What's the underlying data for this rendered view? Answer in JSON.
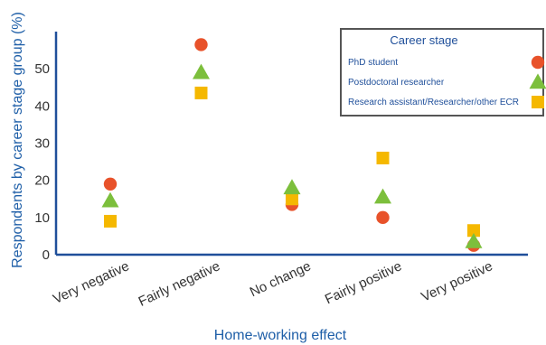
{
  "chart_data": {
    "type": "scatter",
    "title": "",
    "xlabel": "Home-working effect",
    "ylabel": "Respondents by career stage group (%)",
    "ylim": [
      0,
      60
    ],
    "yticks": [
      0,
      10,
      20,
      30,
      40,
      50
    ],
    "grid": false,
    "legend_position": "top-right",
    "legend_title": "Career stage",
    "categories": [
      "Very negative",
      "Fairly negative",
      "No change",
      "Fairly positive",
      "Very positive"
    ],
    "series": [
      {
        "name": "PhD student",
        "marker": "circle",
        "color": "#e8522a",
        "values": [
          19,
          56.5,
          13.5,
          10,
          2.5
        ]
      },
      {
        "name": "Postdoctoral researcher",
        "marker": "triangle",
        "color": "#7cbf3c",
        "values": [
          14.5,
          49,
          18,
          15.5,
          3.5
        ]
      },
      {
        "name": "Research assistant/Researcher/other ECR",
        "marker": "square",
        "color": "#f5b800",
        "values": [
          9,
          43.5,
          15,
          26,
          6.5
        ]
      }
    ]
  }
}
